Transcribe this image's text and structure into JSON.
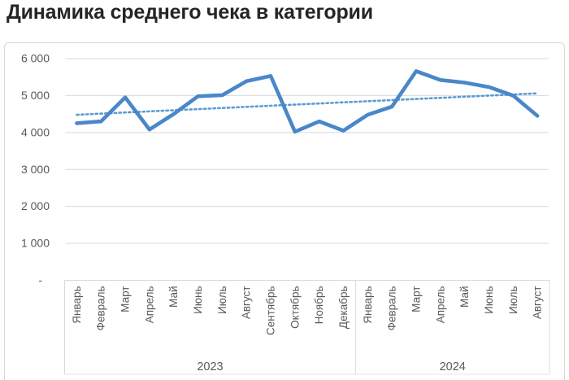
{
  "title": "Динамика среднего чека в категории",
  "chart_data": {
    "type": "line",
    "title": "Динамика среднего чека в категории",
    "xlabel": "",
    "ylabel": "",
    "ylim": [
      0,
      6000
    ],
    "grid": true,
    "legend": false,
    "yticks": [
      {
        "label": "6 000",
        "value": 6000
      },
      {
        "label": "5 000",
        "value": 5000
      },
      {
        "label": "4 000",
        "value": 4000
      },
      {
        "label": "3 000",
        "value": 3000
      },
      {
        "label": "2 000",
        "value": 2000
      },
      {
        "label": "1 000",
        "value": 1000
      },
      {
        "label": "-",
        "value": 0
      }
    ],
    "groups": [
      {
        "year": "2023",
        "months": [
          "Январь",
          "Февраль",
          "Март",
          "Апрель",
          "Май",
          "Июнь",
          "Июль",
          "Август",
          "Сентябрь",
          "Октябрь",
          "Ноябрь",
          "Декабрь"
        ],
        "values": [
          4250,
          4300,
          4950,
          4080,
          4500,
          4980,
          5010,
          5390,
          5530,
          4020,
          4300,
          4050
        ]
      },
      {
        "year": "2024",
        "months": [
          "Январь",
          "Февраль",
          "Март",
          "Апрель",
          "Май",
          "Июнь",
          "Июль",
          "Август"
        ],
        "values": [
          4480,
          4700,
          5660,
          5420,
          5350,
          5230,
          5000,
          4450
        ]
      }
    ],
    "trendline": {
      "type": "linear",
      "style": "dotted",
      "start_value": 4480,
      "end_value": 5060
    },
    "colors": {
      "series": "#4a87c8",
      "trend": "#5b9bd5",
      "grid": "#d9d9d9",
      "axis_text": "#595959",
      "title_text": "#252525",
      "border": "#d8d8d8"
    }
  }
}
